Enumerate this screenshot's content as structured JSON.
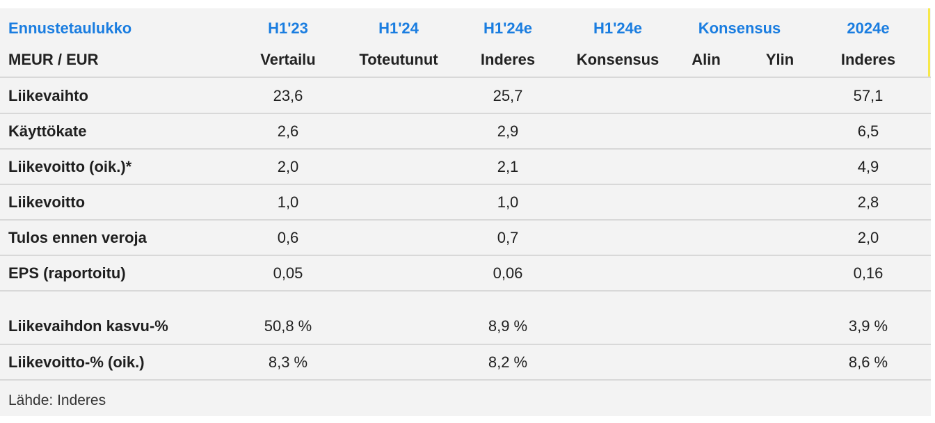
{
  "header": {
    "title": "Ennustetaulukko",
    "unit": "MEUR / EUR",
    "columns": [
      {
        "top": "H1'23",
        "bottom": "Vertailu"
      },
      {
        "top": "H1'24",
        "bottom": "Toteutunut"
      },
      {
        "top": "H1'24e",
        "bottom": "Inderes"
      },
      {
        "top": "H1'24e",
        "bottom": "Konsensus"
      },
      {
        "top": "Konsensus",
        "bottom": "Alin"
      },
      {
        "top": "",
        "bottom": "Ylin"
      },
      {
        "top": "2024e",
        "bottom": "Inderes"
      }
    ]
  },
  "rows": [
    {
      "label": "Liikevaihto",
      "values": [
        "23,6",
        "",
        "25,7",
        "",
        "",
        "",
        "57,1"
      ]
    },
    {
      "label": "Käyttökate",
      "values": [
        "2,6",
        "",
        "2,9",
        "",
        "",
        "",
        "6,5"
      ]
    },
    {
      "label": "Liikevoitto (oik.)*",
      "values": [
        "2,0",
        "",
        "2,1",
        "",
        "",
        "",
        "4,9"
      ]
    },
    {
      "label": "Liikevoitto",
      "values": [
        "1,0",
        "",
        "1,0",
        "",
        "",
        "",
        "2,8"
      ]
    },
    {
      "label": "Tulos ennen veroja",
      "values": [
        "0,6",
        "",
        "0,7",
        "",
        "",
        "",
        "2,0"
      ]
    },
    {
      "label": "EPS (raportoitu)",
      "values": [
        "0,05",
        "",
        "0,06",
        "",
        "",
        "",
        "0,16"
      ]
    }
  ],
  "growth_rows": [
    {
      "label": "Liikevaihdon kasvu-%",
      "values": [
        "50,8 %",
        "",
        "8,9 %",
        "",
        "",
        "",
        "3,9 %"
      ]
    },
    {
      "label": "Liikevoitto-% (oik.)",
      "values": [
        "8,3 %",
        "",
        "8,2 %",
        "",
        "",
        "",
        "8,6 %"
      ]
    }
  ],
  "source": "Lähde: Inderes",
  "colors": {
    "header_blue": "#1a7de0",
    "background": "#f3f3f3",
    "separator": "#d8d8d8",
    "accent_yellow": "#f7e84a"
  }
}
